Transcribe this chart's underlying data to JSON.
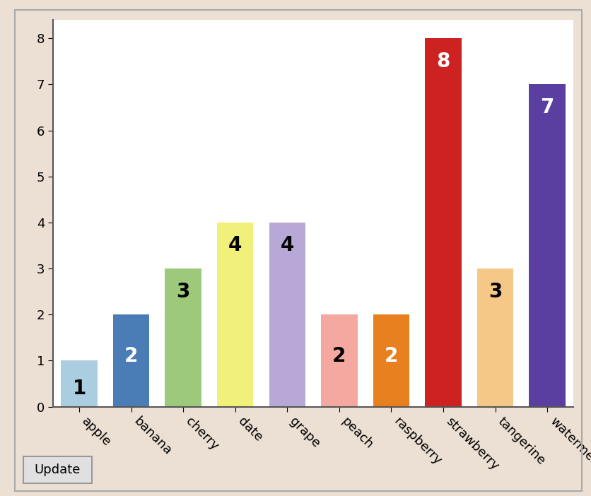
{
  "categories": [
    "apple",
    "banana",
    "cherry",
    "date",
    "grape",
    "peach",
    "raspberry",
    "strawberry",
    "tangerine",
    "watermelon"
  ],
  "values": [
    1,
    2,
    3,
    4,
    4,
    2,
    2,
    8,
    3,
    7
  ],
  "bar_colors": [
    "#aacde0",
    "#4a7db5",
    "#9dc97a",
    "#f0f07a",
    "#b8a8d8",
    "#f4a8a0",
    "#e88020",
    "#cc2222",
    "#f5c888",
    "#5a3fa0"
  ],
  "label_colors": [
    "#000000",
    "#ffffff",
    "#000000",
    "#000000",
    "#000000",
    "#000000",
    "#ffffff",
    "#ffffff",
    "#000000",
    "#ffffff"
  ],
  "ylim": [
    0,
    8.4
  ],
  "yticks": [
    0,
    1,
    2,
    3,
    4,
    5,
    6,
    7,
    8
  ],
  "background_color": "#ffffff",
  "outer_background": "#ecdfd3",
  "chart_border_color": "#888888",
  "label_fontsize": 20,
  "tick_fontsize": 13,
  "button_bg": "#e0e0e0",
  "button_border": "#999999"
}
